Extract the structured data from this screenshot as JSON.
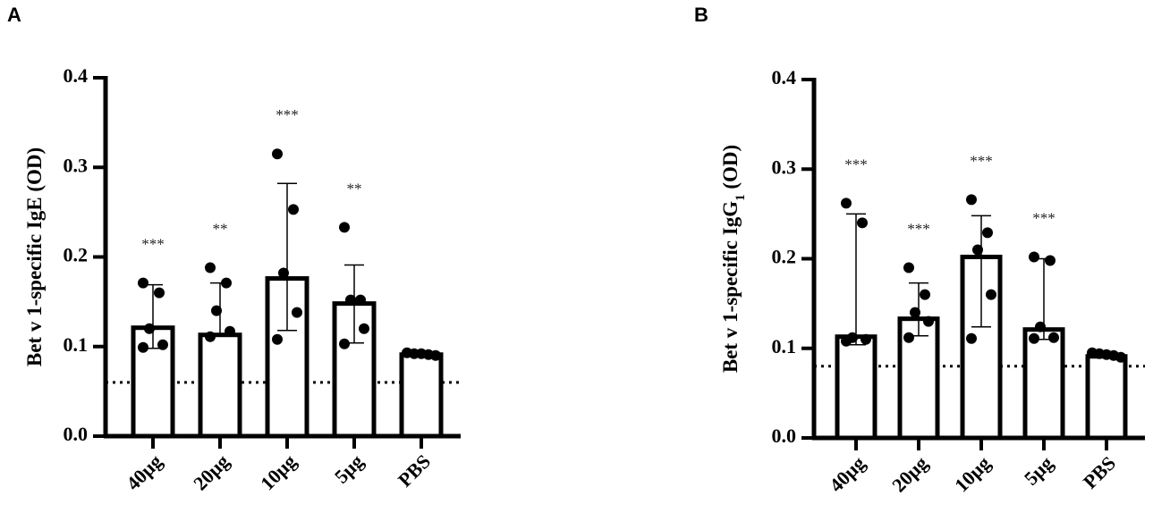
{
  "chart_data": [
    {
      "type": "bar",
      "panel": "A",
      "ylabel_main": "Bet v 1-specific IgE (OD)",
      "ylabel_sub": "",
      "ylabel_suffix": "",
      "ylim": [
        0,
        0.4
      ],
      "yticks": [
        "0.0",
        "0.1",
        "0.2",
        "0.3",
        "0.4"
      ],
      "categories": [
        "40µg",
        "20µg",
        "10µg",
        "5µg",
        "PBS"
      ],
      "values": [
        0.121,
        0.113,
        0.176,
        0.148,
        0.091
      ],
      "error_low": [
        0.098,
        null,
        0.118,
        0.104,
        null
      ],
      "error_high": [
        0.169,
        0.171,
        0.282,
        0.191,
        null
      ],
      "points": [
        [
          0.171,
          0.16,
          0.12,
          0.102,
          0.099
        ],
        [
          0.188,
          0.171,
          0.14,
          0.117,
          0.111
        ],
        [
          0.315,
          0.253,
          0.182,
          0.138,
          0.108
        ],
        [
          0.233,
          0.152,
          0.152,
          0.12,
          0.103
        ],
        [
          0.093,
          0.092,
          0.092,
          0.091,
          0.09
        ]
      ],
      "significance": [
        "***",
        "**",
        "***",
        "**",
        ""
      ],
      "reference_line": 0.06
    },
    {
      "type": "bar",
      "panel": "B",
      "ylabel_main": "Bet v 1-specific IgG",
      "ylabel_sub": "1",
      "ylabel_suffix": " (OD)",
      "ylim": [
        0,
        0.4
      ],
      "yticks": [
        "0.0",
        "0.1",
        "0.2",
        "0.3",
        "0.4"
      ],
      "categories": [
        "40µg",
        "20µg",
        "10µg",
        "5µg",
        "PBS"
      ],
      "values": [
        0.113,
        0.133,
        0.202,
        0.121,
        0.091
      ],
      "error_low": [
        0.104,
        0.114,
        0.124,
        0.11,
        null
      ],
      "error_high": [
        0.25,
        0.173,
        0.248,
        0.2,
        null
      ],
      "points": [
        [
          0.262,
          0.24,
          0.112,
          0.11,
          0.108
        ],
        [
          0.19,
          0.16,
          0.14,
          0.13,
          0.112
        ],
        [
          0.266,
          0.229,
          0.21,
          0.16,
          0.111
        ],
        [
          0.202,
          0.198,
          0.124,
          0.112,
          0.111
        ],
        [
          0.095,
          0.094,
          0.093,
          0.092,
          0.09
        ]
      ],
      "significance": [
        "***",
        "***",
        "***",
        "***",
        ""
      ],
      "reference_line": 0.08
    }
  ],
  "panels": {
    "A": "A",
    "B": "B"
  }
}
